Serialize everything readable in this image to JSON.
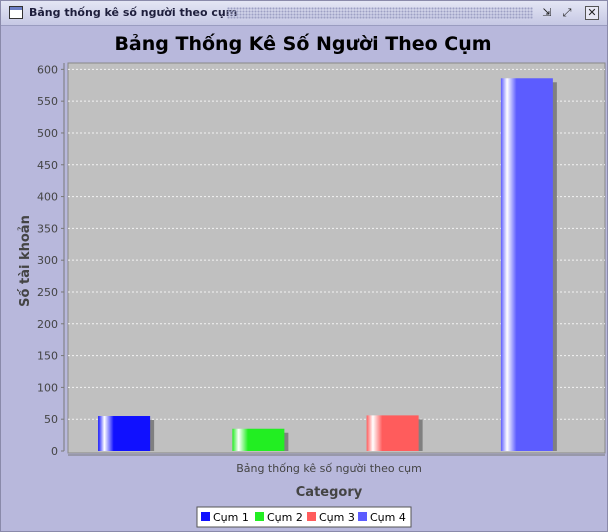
{
  "window": {
    "title": "Bảng thống kê số người theo cụm",
    "minimize_glyph": "⇲",
    "maximize_glyph": "⤢",
    "close_glyph": "✕"
  },
  "chart_data": {
    "type": "bar",
    "title": "Bảng Thống Kê Số Người Theo Cụm",
    "xlabel": "Category",
    "ylabel": "Số tài khoản",
    "categories": [
      "Bảng thống kê số người theo cụm"
    ],
    "series": [
      {
        "name": "Cụm 1",
        "values": [
          55
        ],
        "color": "#1010ff"
      },
      {
        "name": "Cụm 2",
        "values": [
          35
        ],
        "color": "#22ee22"
      },
      {
        "name": "Cụm 3",
        "values": [
          56
        ],
        "color": "#ff5c5c"
      },
      {
        "name": "Cụm 4",
        "values": [
          586
        ],
        "color": "#5c5cff"
      }
    ],
    "ylim": [
      0,
      610
    ],
    "yticks": [
      0,
      50,
      100,
      150,
      200,
      250,
      300,
      350,
      400,
      450,
      500,
      550,
      600
    ],
    "grid": true,
    "legend_position": "bottom",
    "plot_background": "#c0c0c0"
  }
}
